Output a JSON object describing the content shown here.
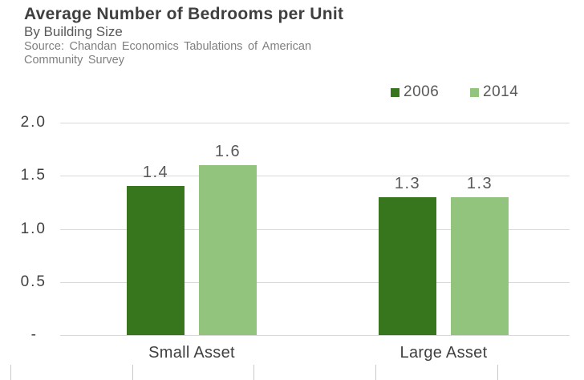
{
  "chart_data": {
    "type": "bar",
    "title": "Average Number of Bedrooms per Unit",
    "subtitle": "By Building Size",
    "source_lines": [
      "Source: Chandan Economics Tabulations of American",
      "Community Survey"
    ],
    "categories": [
      "Small Asset",
      "Large Asset"
    ],
    "series": [
      {
        "name": "2006",
        "color": "#38761d",
        "values": [
          1.4,
          1.3
        ],
        "labels": [
          "1.4",
          "1.3"
        ]
      },
      {
        "name": "2014",
        "color": "#93c47d",
        "values": [
          1.6,
          1.3
        ],
        "labels": [
          "1.6",
          "1.3"
        ]
      }
    ],
    "xlabel": "",
    "ylabel": "",
    "ylim": [
      0,
      2
    ],
    "yticks": [
      {
        "value": 2.0,
        "label": "2.0"
      },
      {
        "value": 1.5,
        "label": "1.5"
      },
      {
        "value": 1.0,
        "label": "1.0"
      },
      {
        "value": 0.5,
        "label": "0.5"
      },
      {
        "value": 0.0,
        "label": "-"
      }
    ],
    "grid": true,
    "legend": {
      "position": "top-right",
      "entries": [
        "2006",
        "2014"
      ]
    },
    "colors": {
      "bar_2006": "#38761d",
      "bar_2014": "#93c47d",
      "gridline": "#d9d9d9",
      "axis_tick": "#c9c9c9",
      "title_text": "#3f3f3f",
      "subtitle_text": "#595959",
      "source_text": "#7f7f7f",
      "axis_text": "#404040",
      "data_label_text": "#595959"
    }
  }
}
